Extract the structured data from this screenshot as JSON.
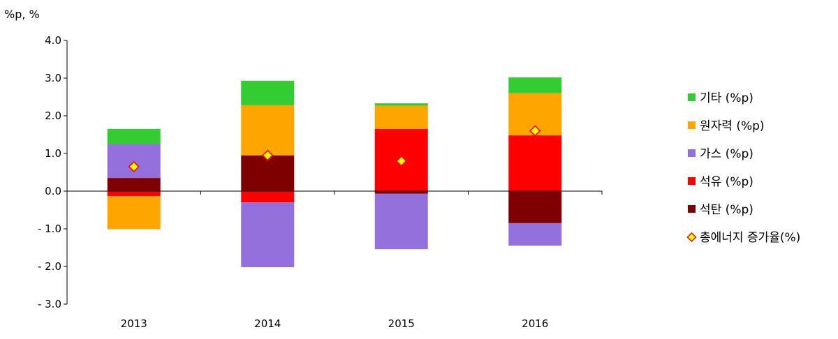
{
  "chart_data": {
    "type": "bar",
    "stacked": true,
    "unit_label": "%p, %",
    "categories": [
      "2013",
      "2014",
      "2015",
      "2016"
    ],
    "ylim": [
      -3.0,
      4.0
    ],
    "yticks": [
      "4.0",
      "3.0",
      "2.0",
      "1.0",
      "0.0",
      "- 1.0",
      "- 2.0",
      "- 3.0"
    ],
    "ytick_values": [
      4,
      3,
      2,
      1,
      0,
      -1,
      -2,
      -3
    ],
    "grid": false,
    "legend_position": "right",
    "series": [
      {
        "name": "석탄 (%p)",
        "color": "#7f0000",
        "values": [
          0.35,
          0.95,
          -0.07,
          -0.85
        ]
      },
      {
        "name": "석유 (%p)",
        "color": "#ff0000",
        "values": [
          -0.13,
          -0.3,
          1.65,
          1.48
        ]
      },
      {
        "name": "가스 (%p)",
        "color": "#9370db",
        "values": [
          0.9,
          -1.72,
          -1.47,
          -0.6
        ]
      },
      {
        "name": "원자력 (%p)",
        "color": "#ffa500",
        "values": [
          -0.88,
          1.33,
          0.62,
          1.12
        ]
      },
      {
        "name": "기타 (%p)",
        "color": "#33cc33",
        "values": [
          0.4,
          0.65,
          0.06,
          0.42
        ]
      }
    ],
    "marker_series": {
      "name": "총에너지 증가율(%)",
      "fill": "#ffff00",
      "stroke": "#ff0000",
      "values": [
        0.65,
        0.95,
        0.8,
        1.6
      ]
    },
    "legend_order": [
      "기타 (%p)",
      "원자력 (%p)",
      "가스 (%p)",
      "석유 (%p)",
      "석탄 (%p)",
      "총에너지 증가율(%)"
    ]
  }
}
